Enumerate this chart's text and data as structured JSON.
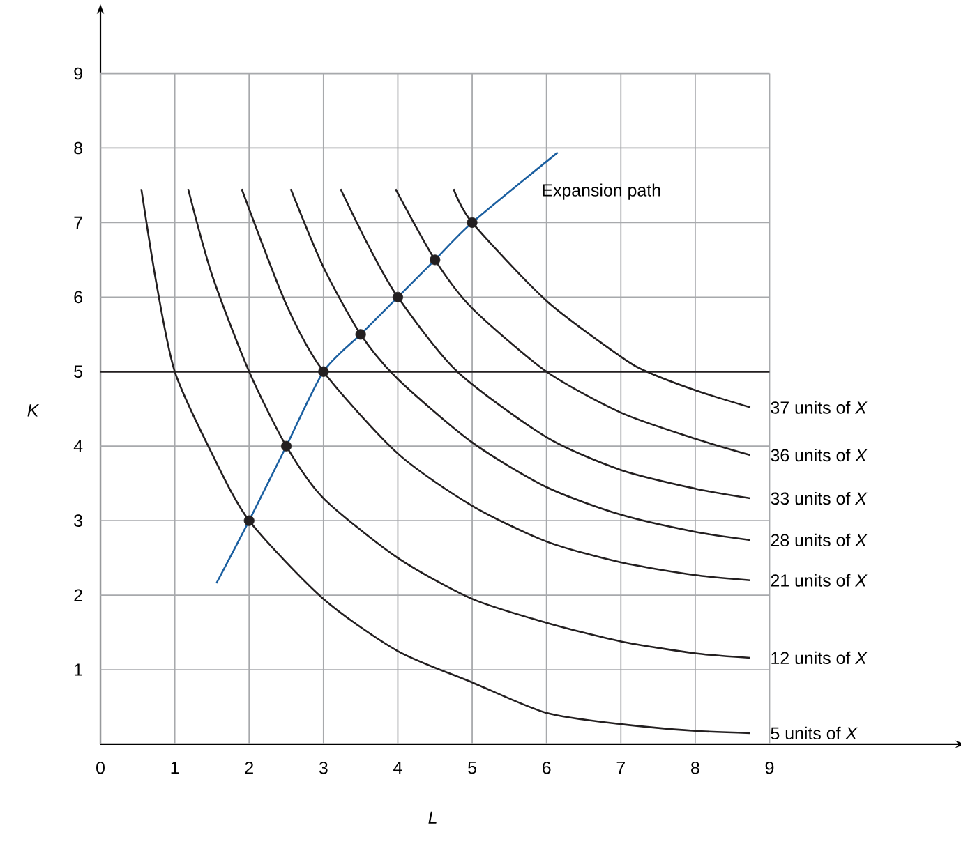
{
  "chart_data": {
    "type": "line",
    "xlabel": "L",
    "ylabel": "K",
    "xlim": [
      0,
      11.5
    ],
    "ylim": [
      0,
      9.8
    ],
    "xticks": [
      0,
      1,
      2,
      3,
      4,
      5,
      6,
      7,
      8,
      9
    ],
    "yticks": [
      1,
      2,
      3,
      4,
      5,
      6,
      7,
      8,
      9
    ],
    "grid": true,
    "line_style": "solid",
    "series": [
      {
        "name": "5 units of *X*",
        "color": "#231f20",
        "x": [
          0.55,
          0.75,
          1,
          1.5,
          2,
          3,
          4,
          5,
          6,
          7,
          8,
          8.74
        ],
        "values": [
          7.45,
          6.2,
          5,
          3.9,
          3,
          1.95,
          1.25,
          0.83,
          0.42,
          0.27,
          0.18,
          0.15
        ]
      },
      {
        "name": "12 units of *X*",
        "color": "#231f20",
        "x": [
          1.18,
          1.5,
          2,
          2.5,
          3,
          4,
          5,
          6,
          7,
          8,
          8.74
        ],
        "values": [
          7.45,
          6.3,
          5,
          4,
          3.3,
          2.5,
          1.95,
          1.63,
          1.38,
          1.22,
          1.16
        ]
      },
      {
        "name": "21 units of *X*",
        "color": "#231f20",
        "x": [
          1.9,
          2.5,
          3,
          4,
          5,
          6,
          7,
          8,
          8.74
        ],
        "values": [
          7.45,
          5.9,
          5,
          3.9,
          3.2,
          2.72,
          2.44,
          2.27,
          2.2
        ]
      },
      {
        "name": "28 units of *X*",
        "color": "#231f20",
        "x": [
          2.56,
          3,
          3.5,
          4,
          5,
          6,
          7,
          8,
          8.74
        ],
        "values": [
          7.45,
          6.4,
          5.5,
          4.9,
          4.05,
          3.45,
          3.08,
          2.85,
          2.74
        ]
      },
      {
        "name": "33 units of *X*",
        "color": "#231f20",
        "x": [
          3.23,
          3.6,
          4,
          4.8,
          6,
          7,
          8,
          8.74
        ],
        "values": [
          7.45,
          6.7,
          6,
          5,
          4.12,
          3.68,
          3.43,
          3.3
        ]
      },
      {
        "name": "36 units of *X*",
        "color": "#231f20",
        "x": [
          3.97,
          4.5,
          5,
          6,
          7,
          8,
          8.74
        ],
        "values": [
          7.45,
          6.5,
          5.85,
          5,
          4.45,
          4.1,
          3.88
        ]
      },
      {
        "name": "37 units of *X*",
        "color": "#231f20",
        "x": [
          4.75,
          5,
          6,
          7,
          7.35,
          8,
          8.74
        ],
        "values": [
          7.45,
          7,
          5.95,
          5.2,
          5,
          4.75,
          4.52
        ]
      },
      {
        "name": "Expansion path",
        "color": "#1b5fa0",
        "x": [
          1.56,
          2,
          2.5,
          3,
          3.5,
          4,
          4.5,
          5,
          6.15
        ],
        "values": [
          2.16,
          3,
          4,
          5,
          5.5,
          6,
          6.5,
          7,
          7.94
        ]
      },
      {
        "type": "scatter",
        "marker": "circle",
        "color": "#231f20",
        "x": [
          2,
          2.5,
          3,
          3.5,
          4,
          4.5,
          5
        ],
        "values": [
          3,
          4,
          5,
          5.5,
          6,
          6.5,
          7
        ]
      }
    ],
    "ref_lines": [
      {
        "axis": "y",
        "value": 5,
        "color": "#231f20"
      }
    ]
  }
}
